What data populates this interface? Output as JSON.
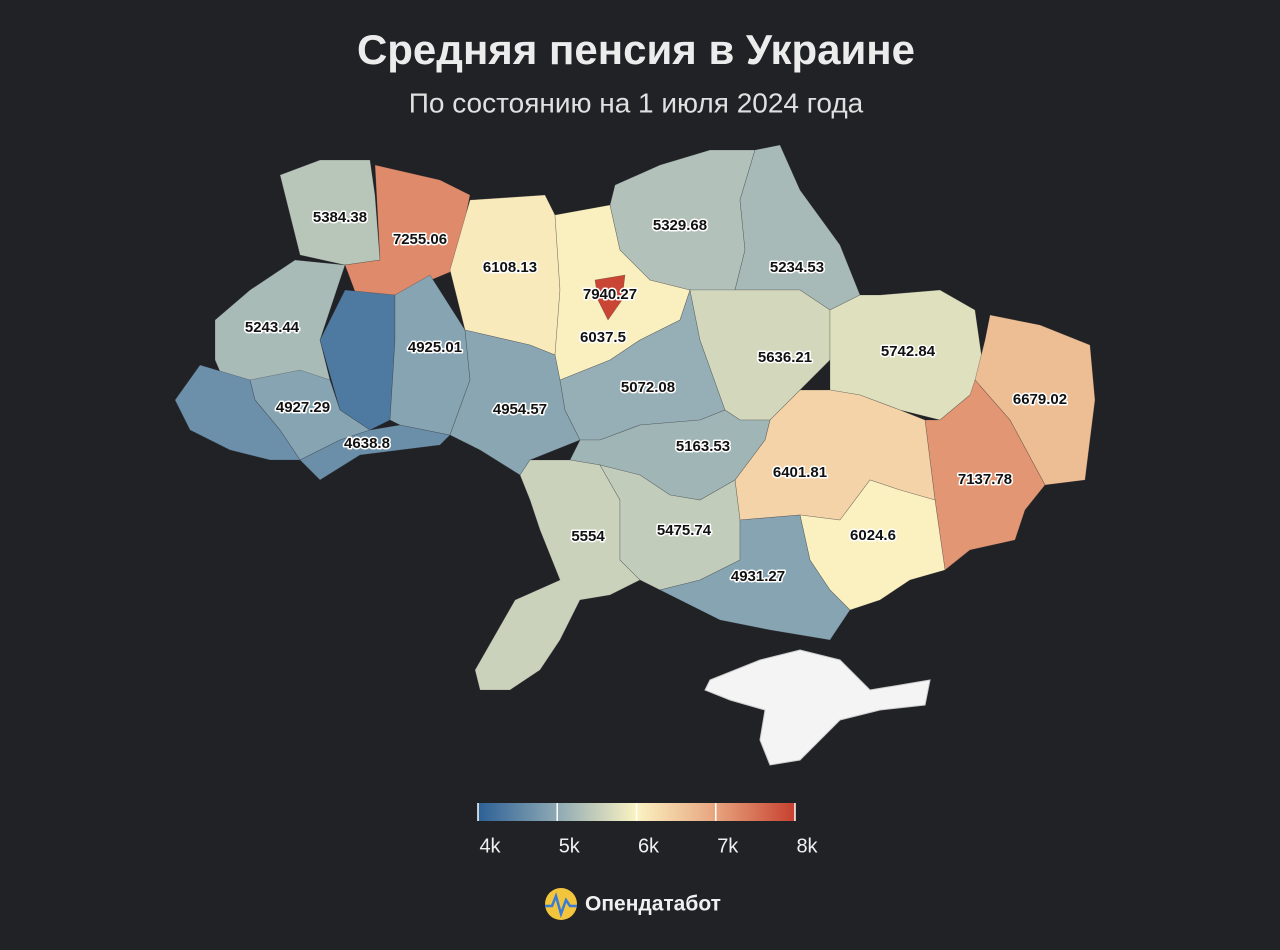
{
  "chart_data": {
    "type": "choropleth",
    "title": "Средняя пенсия в Украине",
    "subtitle": "По состоянию на 1 июля 2024 года",
    "values": [
      5384.38,
      7255.06,
      6108.13,
      6037.5,
      7940.27,
      5329.68,
      5234.53,
      5243.44,
      4350,
      4927.29,
      4650,
      4638.8,
      4925.01,
      4954.57,
      5072.08,
      5636.21,
      5742.84,
      6679.02,
      7137.78,
      6401.81,
      5163.53,
      6024.6,
      5554,
      5475.74,
      4931.27
    ],
    "colorbar": {
      "range": [
        4000,
        8000
      ],
      "ticks": [
        {
          "value": 4000,
          "label": "4k"
        },
        {
          "value": 5000,
          "label": "5k"
        },
        {
          "value": 6000,
          "label": "6k"
        },
        {
          "value": 7000,
          "label": "7k"
        },
        {
          "value": 8000,
          "label": "8k"
        }
      ],
      "colors": [
        "#2c6096",
        "#8ea9b4",
        "#fbf3c2",
        "#e7a47e",
        "#c7402f"
      ]
    }
  },
  "footer": {
    "logo": "Опендатабот"
  }
}
